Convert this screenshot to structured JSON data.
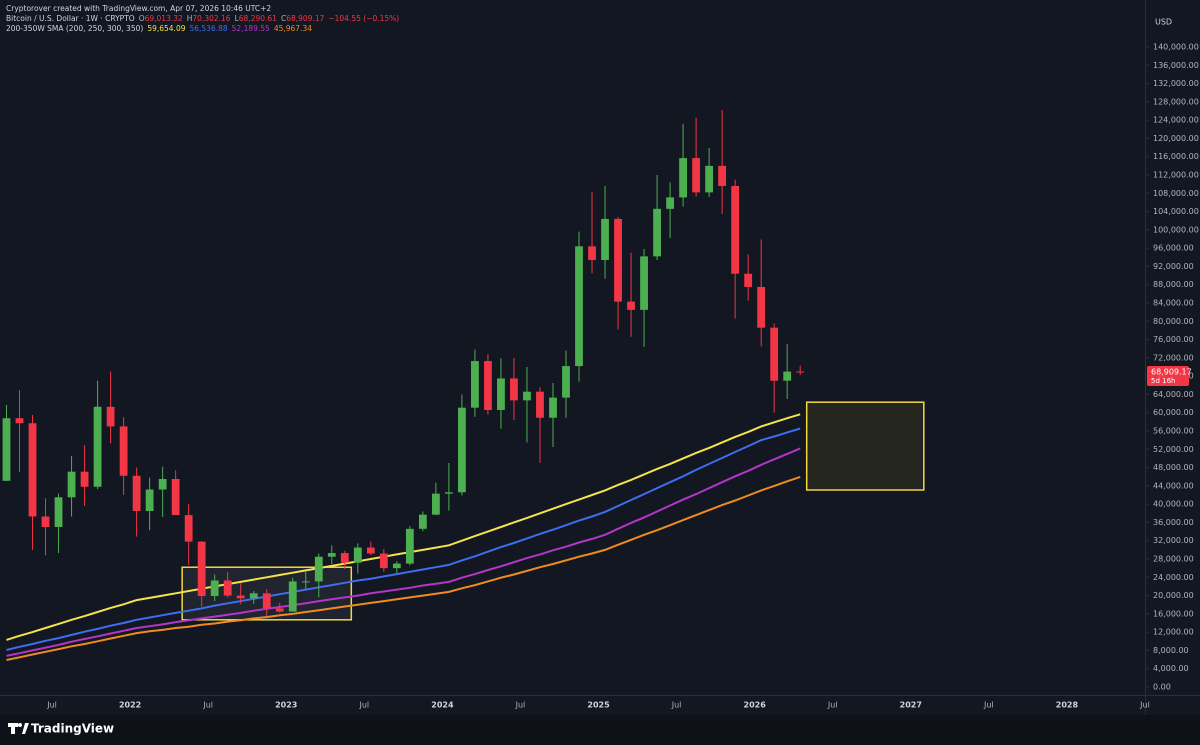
{
  "chart_data": {
    "type": "candlestick",
    "credit": "Cryptorover created with TradingView.com, Apr 07, 2026 10:46 UTC+2",
    "symbol": "Bitcoin / U.S. Dollar · 1W · CRYPTO",
    "ohlc_legend": [
      {
        "key": "O",
        "value": "69,013.32"
      },
      {
        "key": "H",
        "value": "70,302.16"
      },
      {
        "key": "L",
        "value": "68,290.61"
      },
      {
        "key": "C",
        "value": "68,909.17"
      }
    ],
    "change": "−104.55 (−0.15%)",
    "indicator": "200-350W SMA (200, 250, 300, 350)",
    "currency": "USD",
    "footer": "TradingView",
    "price_badge": {
      "price": "68,909.17",
      "countdown": "5d 16h"
    },
    "up_color": "#4caf50",
    "down_color": "#f23645",
    "xlim": [
      "2021-03",
      "2028-07"
    ],
    "ylim": [
      -1750,
      147000
    ],
    "grid": false,
    "x": [
      "2021-03",
      "2021-04",
      "2021-05",
      "2021-06",
      "2021-07",
      "2021-08",
      "2021-09",
      "2021-10",
      "2021-11",
      "2021-12",
      "2022-01",
      "2022-02",
      "2022-03",
      "2022-04",
      "2022-05",
      "2022-06",
      "2022-07",
      "2022-08",
      "2022-09",
      "2022-10",
      "2022-11",
      "2022-12",
      "2023-01",
      "2023-02",
      "2023-03",
      "2023-04",
      "2023-05",
      "2023-06",
      "2023-07",
      "2023-08",
      "2023-09",
      "2023-10",
      "2023-11",
      "2023-12",
      "2024-01",
      "2024-02",
      "2024-03",
      "2024-04",
      "2024-05",
      "2024-06",
      "2024-07",
      "2024-08",
      "2024-09",
      "2024-10",
      "2024-11",
      "2024-12",
      "2025-01",
      "2025-02",
      "2025-03",
      "2025-04",
      "2025-05",
      "2025-06",
      "2025-07",
      "2025-08",
      "2025-09",
      "2025-10",
      "2025-11",
      "2025-12",
      "2026-01",
      "2026-02",
      "2026-03",
      "2026-04"
    ],
    "open": [
      45100,
      58800,
      57700,
      37300,
      35000,
      41500,
      47100,
      43800,
      61300,
      57000,
      46200,
      38500,
      43200,
      45500,
      37600,
      31800,
      19900,
      23300,
      20000,
      19400,
      20500,
      17200,
      16500,
      23100,
      23100,
      28500,
      29300,
      27200,
      30500,
      29200,
      26000,
      27000,
      34600,
      37700,
      42300,
      42600,
      61100,
      71300,
      60600,
      67500,
      62700,
      64600,
      58900,
      63300,
      70200,
      96400,
      93400,
      102400,
      84300,
      82500,
      94200,
      104600,
      107100,
      115700,
      108200,
      114000,
      109600,
      90400,
      87500,
      78600,
      67000,
      69013.32
    ],
    "high": [
      61700,
      64900,
      59500,
      41300,
      42300,
      50500,
      52900,
      67000,
      69000,
      59000,
      48000,
      45800,
      48200,
      47400,
      40000,
      31900,
      24600,
      25200,
      22700,
      21000,
      21400,
      18400,
      23900,
      25200,
      29200,
      31000,
      29800,
      31400,
      31800,
      30200,
      27500,
      35200,
      38400,
      44700,
      49000,
      64000,
      73800,
      72800,
      71900,
      72000,
      70000,
      65600,
      66500,
      73600,
      99600,
      108300,
      109600,
      102800,
      95000,
      95800,
      112000,
      110400,
      123200,
      124500,
      117900,
      126200,
      111000,
      94600,
      97900,
      79500,
      75000,
      70302.16
    ],
    "low": [
      45100,
      47000,
      30000,
      28800,
      29300,
      37300,
      39600,
      43300,
      53300,
      42000,
      32900,
      34300,
      37200,
      37700,
      26700,
      17600,
      18800,
      19600,
      18100,
      18200,
      15500,
      16300,
      16500,
      21400,
      19600,
      26900,
      25800,
      24800,
      28900,
      25200,
      24900,
      26600,
      34100,
      37600,
      38600,
      41900,
      59100,
      59600,
      56500,
      58400,
      53500,
      49000,
      52500,
      58900,
      66800,
      90500,
      89300,
      78200,
      76600,
      74400,
      93400,
      98200,
      105100,
      107300,
      107200,
      103500,
      80600,
      84500,
      74500,
      60000,
      63000,
      68290.61
    ],
    "close": [
      58800,
      57700,
      37300,
      35000,
      41500,
      47100,
      43800,
      61300,
      57000,
      46200,
      38500,
      43200,
      45500,
      37600,
      31800,
      19900,
      23300,
      20000,
      19400,
      20500,
      17200,
      16500,
      23100,
      23100,
      28500,
      29300,
      27200,
      30500,
      29200,
      26000,
      27000,
      34600,
      37700,
      42300,
      42600,
      61100,
      71300,
      60600,
      67500,
      62700,
      64600,
      58900,
      63300,
      70200,
      96400,
      93400,
      102400,
      84300,
      82500,
      94200,
      104600,
      107100,
      115700,
      108200,
      114000,
      109600,
      90400,
      87500,
      78600,
      67000,
      69000,
      68909.17
    ],
    "series": [
      {
        "color": "#f5e34b",
        "last_label": "59,654.09",
        "values": [
          10300,
          11200,
          12000,
          12900,
          13800,
          14700,
          15500,
          16400,
          17300,
          18100,
          19000,
          19500,
          20000,
          20500,
          21000,
          21500,
          22000,
          22500,
          23000,
          23500,
          24000,
          24500,
          25000,
          25500,
          26000,
          26500,
          27000,
          27500,
          28000,
          28500,
          29000,
          29500,
          30000,
          30500,
          31000,
          32000,
          33000,
          34000,
          35000,
          36000,
          37000,
          38000,
          39000,
          40000,
          41000,
          42000,
          43000,
          44200,
          45300,
          46500,
          47700,
          48800,
          50000,
          51200,
          52300,
          53500,
          54700,
          55800,
          57000,
          57900,
          58800,
          59654.09
        ]
      },
      {
        "color": "#3d6ef0",
        "last_label": "56,536.88",
        "values": [
          8100,
          8800,
          9400,
          10100,
          10700,
          11400,
          12100,
          12700,
          13400,
          14000,
          14700,
          15200,
          15700,
          16200,
          16700,
          17200,
          17800,
          18300,
          18800,
          19300,
          19800,
          20300,
          20800,
          21300,
          21800,
          22300,
          22800,
          23300,
          23700,
          24200,
          24700,
          25200,
          25700,
          26200,
          26700,
          27700,
          28600,
          29600,
          30600,
          31500,
          32500,
          33500,
          34400,
          35400,
          36400,
          37300,
          38300,
          39600,
          40900,
          42200,
          43500,
          44800,
          46100,
          47500,
          48800,
          50100,
          51400,
          52700,
          54000,
          54800,
          55700,
          56536.88
        ]
      },
      {
        "color": "#b336c8",
        "last_label": "52,189.55",
        "values": [
          6800,
          7400,
          8000,
          8600,
          9200,
          9900,
          10500,
          11100,
          11700,
          12300,
          12900,
          13300,
          13700,
          14200,
          14600,
          15000,
          15400,
          15800,
          16200,
          16700,
          17100,
          17500,
          17900,
          18300,
          18800,
          19200,
          19600,
          20000,
          20500,
          20900,
          21300,
          21700,
          22200,
          22600,
          23000,
          23900,
          24700,
          25600,
          26400,
          27300,
          28200,
          29000,
          29900,
          30700,
          31600,
          32400,
          33300,
          34600,
          35900,
          37100,
          38400,
          39700,
          41000,
          42200,
          43500,
          44800,
          46100,
          47300,
          48600,
          49800,
          51000,
          52189.55
        ]
      },
      {
        "color": "#f08c1e",
        "last_label": "45,967.34",
        "values": [
          5900,
          6500,
          7100,
          7700,
          8300,
          8900,
          9400,
          10000,
          10600,
          11200,
          11800,
          12200,
          12500,
          12900,
          13200,
          13600,
          13900,
          14300,
          14600,
          15000,
          15300,
          15700,
          16000,
          16400,
          16800,
          17200,
          17600,
          18000,
          18400,
          18800,
          19200,
          19600,
          20000,
          20400,
          20800,
          21600,
          22300,
          23100,
          23900,
          24600,
          25400,
          26200,
          26900,
          27700,
          28500,
          29200,
          30000,
          31100,
          32200,
          33300,
          34300,
          35400,
          36500,
          37600,
          38700,
          39800,
          40800,
          41900,
          43000,
          44000,
          45000,
          45967.34
        ]
      }
    ],
    "annotations": [
      {
        "x": [
          "2022-05",
          "2023-06"
        ],
        "y": [
          14700,
          26200
        ],
        "color": "#f5d63d",
        "fill": "rgba(255,255,255,0.06)"
      },
      {
        "x": [
          "2026-05",
          "2027-02"
        ],
        "y": [
          43100,
          62300
        ],
        "color": "#f5d63d",
        "fill": "#262621"
      }
    ],
    "xticks": [
      {
        "value": "2021-07",
        "label": "Jul"
      },
      {
        "value": "2022-01",
        "label": "2022"
      },
      {
        "value": "2022-07",
        "label": "Jul"
      },
      {
        "value": "2023-01",
        "label": "2023"
      },
      {
        "value": "2023-07",
        "label": "Jul"
      },
      {
        "value": "2024-01",
        "label": "2024"
      },
      {
        "value": "2024-07",
        "label": "Jul"
      },
      {
        "value": "2025-01",
        "label": "2025"
      },
      {
        "value": "2025-07",
        "label": "Jul"
      },
      {
        "value": "2026-01",
        "label": "2026"
      },
      {
        "value": "2026-07",
        "label": "Jul"
      },
      {
        "value": "2027-01",
        "label": "2027"
      },
      {
        "value": "2027-07",
        "label": "Jul"
      },
      {
        "value": "2028-01",
        "label": "2028"
      },
      {
        "value": "2028-07",
        "label": "Jul"
      }
    ],
    "yticks": [
      {
        "value": 0,
        "label": "0.00"
      },
      {
        "value": 4000,
        "label": "4,000.00"
      },
      {
        "value": 8000,
        "label": "8,000.00"
      },
      {
        "value": 12000,
        "label": "12,000.00"
      },
      {
        "value": 16000,
        "label": "16,000.00"
      },
      {
        "value": 20000,
        "label": "20,000.00"
      },
      {
        "value": 24000,
        "label": "24,000.00"
      },
      {
        "value": 28000,
        "label": "28,000.00"
      },
      {
        "value": 32000,
        "label": "32,000.00"
      },
      {
        "value": 36000,
        "label": "36,000.00"
      },
      {
        "value": 40000,
        "label": "40,000.00"
      },
      {
        "value": 44000,
        "label": "44,000.00"
      },
      {
        "value": 48000,
        "label": "48,000.00"
      },
      {
        "value": 52000,
        "label": "52,000.00"
      },
      {
        "value": 56000,
        "label": "56,000.00"
      },
      {
        "value": 60000,
        "label": "60,000.00"
      },
      {
        "value": 64000,
        "label": "64,000.00"
      },
      {
        "value": 68000,
        "label": "68,000.00"
      },
      {
        "value": 72000,
        "label": "72,000.00"
      },
      {
        "value": 76000,
        "label": "76,000.00"
      },
      {
        "value": 80000,
        "label": "80,000.00"
      },
      {
        "value": 84000,
        "label": "84,000.00"
      },
      {
        "value": 88000,
        "label": "88,000.00"
      },
      {
        "value": 92000,
        "label": "92,000.00"
      },
      {
        "value": 96000,
        "label": "96,000.00"
      },
      {
        "value": 100000,
        "label": "100,000.00"
      },
      {
        "value": 104000,
        "label": "104,000.00"
      },
      {
        "value": 108000,
        "label": "108,000.00"
      },
      {
        "value": 112000,
        "label": "112,000.00"
      },
      {
        "value": 116000,
        "label": "116,000.00"
      },
      {
        "value": 120000,
        "label": "120,000.00"
      },
      {
        "value": 124000,
        "label": "124,000.00"
      },
      {
        "value": 128000,
        "label": "128,000.00"
      },
      {
        "value": 132000,
        "label": "132,000.00"
      },
      {
        "value": 136000,
        "label": "136,000.00"
      },
      {
        "value": 140000,
        "label": "140,000.00"
      }
    ]
  }
}
